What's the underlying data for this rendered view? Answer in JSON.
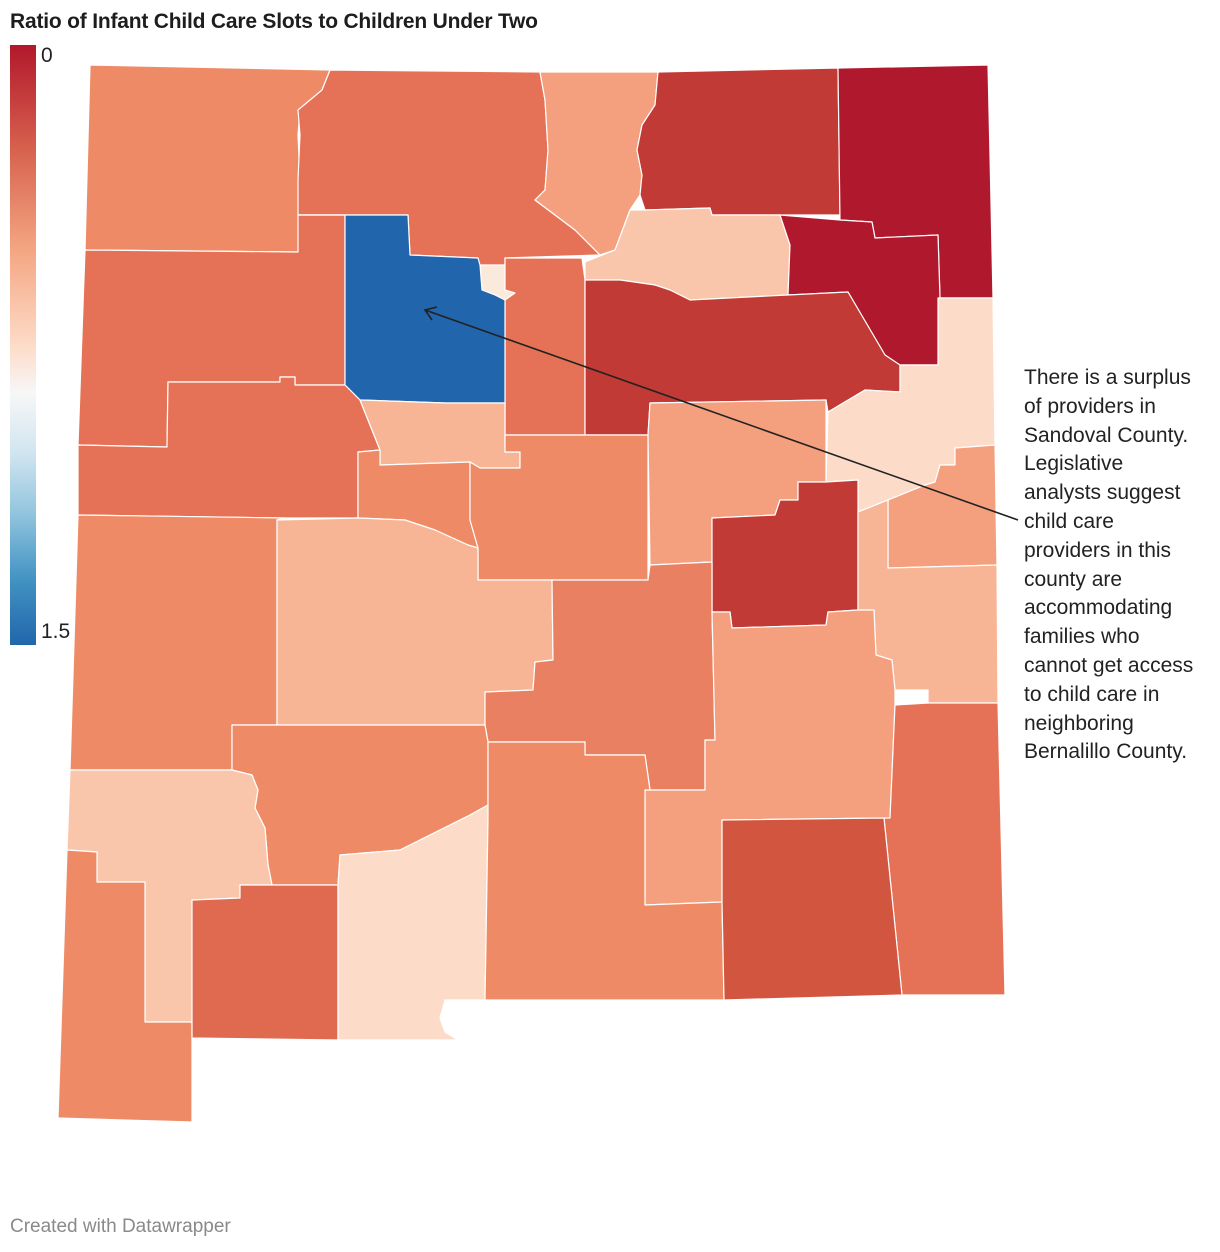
{
  "title": "Ratio of Infant Child Care Slots to Children Under Two",
  "legend": {
    "min_label": "0",
    "max_label": "1.5",
    "min_value": 0,
    "max_value": 1.5,
    "colors": [
      "#b2182b",
      "#d6604d",
      "#f4a582",
      "#fddbc7",
      "#f7f7f7",
      "#d1e5f0",
      "#92c5de",
      "#4393c3",
      "#2166ac"
    ]
  },
  "annotation": {
    "text": "There is a surplus\nof providers in\nSandoval County.\nLegislative\nanalysts suggest\nchild care\nproviders in this\ncounty are\naccommodating\nfamilies who\ncannot get access\nto child care in\nneighboring\nBernalillo County."
  },
  "footer": "Created with Datawrapper",
  "colors": {
    "dark_red": "#b0192d",
    "red": "#c13a35",
    "red_orange": "#d2553f",
    "orange": "#e57257",
    "light_orange": "#ee8b66",
    "salmon": "#f4a07e",
    "light_salmon": "#f7b595",
    "peach": "#f9c6ab",
    "pale_peach": "#fcdcc8",
    "cream": "#f9eadb",
    "blue": "#2166ac"
  }
}
